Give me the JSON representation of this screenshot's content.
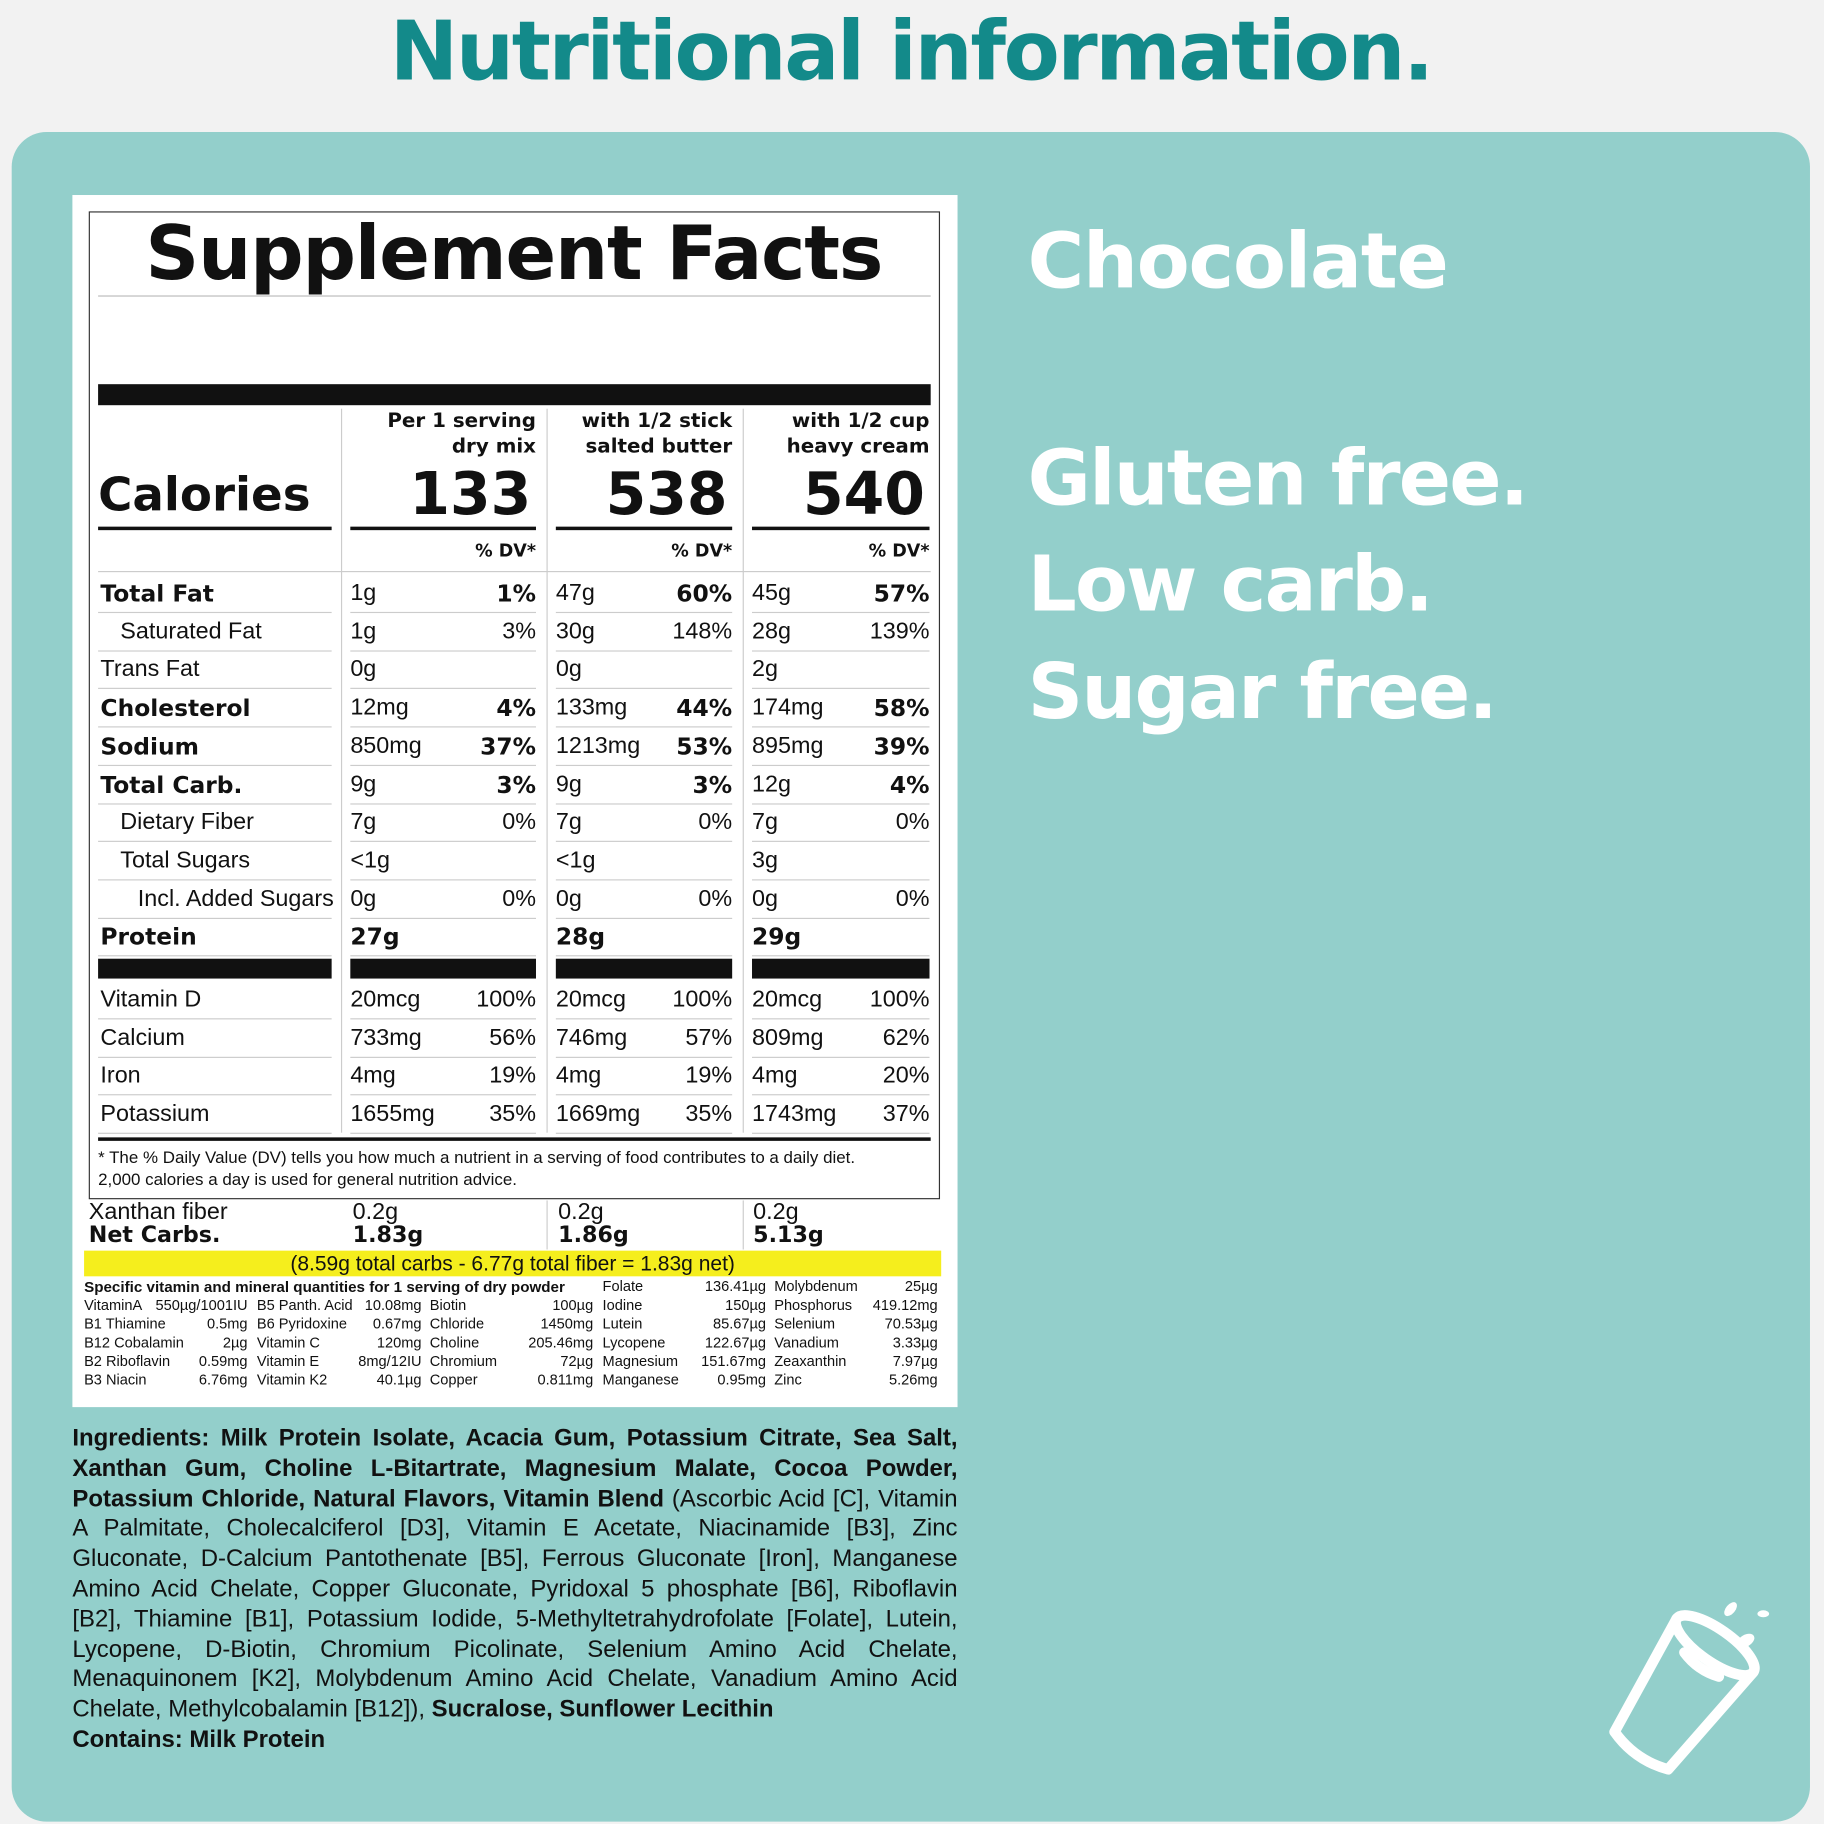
{
  "header": {
    "title": "Nutritional information."
  },
  "side": {
    "flavor": "Chocolate",
    "claims": [
      "Gluten free.",
      "Low carb.",
      "Sugar free."
    ]
  },
  "label": {
    "title": "Supplement Facts",
    "calories_label": "Calories",
    "columns": [
      {
        "header": [
          "Per 1 serving",
          "dry mix"
        ],
        "calories": 133,
        "dv_header": "% DV*"
      },
      {
        "header": [
          "with 1/2 stick",
          "salted butter"
        ],
        "calories": 538,
        "dv_header": "% DV*"
      },
      {
        "header": [
          "with 1/2 cup",
          "heavy cream"
        ],
        "calories": 540,
        "dv_header": "% DV*"
      }
    ],
    "rows": [
      {
        "name": "Total Fat",
        "bold": true,
        "indent": 0,
        "cells": [
          [
            "1g",
            "1%"
          ],
          [
            "47g",
            "60%"
          ],
          [
            "45g",
            "57%"
          ]
        ]
      },
      {
        "name": "Saturated Fat",
        "bold": false,
        "indent": 1,
        "cells": [
          [
            "1g",
            "3%"
          ],
          [
            "30g",
            "148%"
          ],
          [
            "28g",
            "139%"
          ]
        ]
      },
      {
        "name": "Trans Fat",
        "bold": false,
        "indent": 0,
        "cells": [
          [
            "0g"
          ],
          [
            "0g"
          ],
          [
            "2g"
          ]
        ]
      },
      {
        "name": "Cholesterol",
        "bold": true,
        "indent": 0,
        "cells": [
          [
            "12mg",
            "4%"
          ],
          [
            "133mg",
            "44%"
          ],
          [
            "174mg",
            "58%"
          ]
        ]
      },
      {
        "name": "Sodium",
        "bold": true,
        "indent": 0,
        "cells": [
          [
            "850mg",
            "37%"
          ],
          [
            "1213mg",
            "53%"
          ],
          [
            "895mg",
            "39%"
          ]
        ]
      },
      {
        "name": "Total Carb.",
        "bold": true,
        "indent": 0,
        "cells": [
          [
            "9g",
            "3%"
          ],
          [
            "9g",
            "3%"
          ],
          [
            "12g",
            "4%"
          ]
        ]
      },
      {
        "name": "Dietary Fiber",
        "bold": false,
        "indent": 1,
        "cells": [
          [
            "7g",
            "0%"
          ],
          [
            "7g",
            "0%"
          ],
          [
            "7g",
            "0%"
          ]
        ]
      },
      {
        "name": "Total Sugars",
        "bold": false,
        "indent": 1,
        "cells": [
          [
            "<1g"
          ],
          [
            "<1g"
          ],
          [
            "3g"
          ]
        ]
      },
      {
        "name": "Incl. Added Sugars",
        "bold": false,
        "indent": 2,
        "cells": [
          [
            "0g",
            "0%"
          ],
          [
            "0g",
            "0%"
          ],
          [
            "0g",
            "0%"
          ]
        ]
      },
      {
        "name": "Protein",
        "bold": true,
        "indent": 0,
        "cells": [
          [
            "27g"
          ],
          [
            "28g"
          ],
          [
            "29g"
          ]
        ]
      }
    ],
    "vitamins": [
      {
        "name": "Vitamin D",
        "cells": [
          [
            "20mcg",
            "100%"
          ],
          [
            "20mcg",
            "100%"
          ],
          [
            "20mcg",
            "100%"
          ]
        ]
      },
      {
        "name": "Calcium",
        "cells": [
          [
            "733mg",
            "56%"
          ],
          [
            "746mg",
            "57%"
          ],
          [
            "809mg",
            "62%"
          ]
        ]
      },
      {
        "name": "Iron",
        "cells": [
          [
            "4mg",
            "19%"
          ],
          [
            "4mg",
            "19%"
          ],
          [
            "4mg",
            "20%"
          ]
        ]
      },
      {
        "name": "Potassium",
        "cells": [
          [
            "1655mg",
            "35%"
          ],
          [
            "1669mg",
            "35%"
          ],
          [
            "1743mg",
            "37%"
          ]
        ]
      }
    ],
    "footnote": [
      "* The % Daily Value (DV) tells you how much a nutrient in a serving of food contributes to a daily diet.",
      "2,000 calories a day is used for general nutrition advice."
    ],
    "extra_rows": [
      {
        "name": "Xanthan fiber",
        "bold": false,
        "values": [
          "0.2g",
          "0.2g",
          "0.2g"
        ]
      },
      {
        "name": "Net Carbs.",
        "bold": true,
        "values": [
          "1.83g",
          "1.86g",
          "5.13g"
        ]
      }
    ],
    "net_note": "(8.59g total carbs - 6.77g total fiber = 1.83g net)",
    "micronutrients": {
      "title": "Specific vitamin and mineral quantities for 1 serving of dry powder",
      "columns": [
        [
          [
            "VitaminA",
            "550µg/1001IU"
          ],
          [
            "B1 Thiamine",
            "0.5mg"
          ],
          [
            "B12 Cobalamin",
            "2µg"
          ],
          [
            "B2 Riboflavin",
            "0.59mg"
          ],
          [
            "B3 Niacin",
            "6.76mg"
          ]
        ],
        [
          [
            "B5 Panth. Acid",
            "10.08mg"
          ],
          [
            "B6 Pyridoxine",
            "0.67mg"
          ],
          [
            "Vitamin C",
            "120mg"
          ],
          [
            "Vitamin E",
            "8mg/12IU"
          ],
          [
            "Vitamin K2",
            "40.1µg"
          ]
        ],
        [
          [
            "Biotin",
            "100µg"
          ],
          [
            "Chloride",
            "1450mg"
          ],
          [
            "Choline",
            "205.46mg"
          ],
          [
            "Chromium",
            "72µg"
          ],
          [
            "Copper",
            "0.811mg"
          ]
        ],
        [
          [
            "Folate",
            "136.41µg"
          ],
          [
            "Iodine",
            "150µg"
          ],
          [
            "Lutein",
            "85.67µg"
          ],
          [
            "Lycopene",
            "122.67µg"
          ],
          [
            "Magnesium",
            "151.67mg"
          ],
          [
            "Manganese",
            "0.95mg"
          ]
        ],
        [
          [
            "Molybdenum",
            "25µg"
          ],
          [
            "Phosphorus",
            "419.12mg"
          ],
          [
            "Selenium",
            "70.53µg"
          ],
          [
            "Vanadium",
            "3.33µg"
          ],
          [
            "Zeaxanthin",
            "7.97µg"
          ],
          [
            "Zinc",
            "5.26mg"
          ]
        ]
      ]
    }
  },
  "ingredients": {
    "segments": [
      {
        "text": "Ingredients: Milk Protein Isolate, Acacia Gum, Potassium Citrate, Sea Salt, Xanthan Gum, Choline L-Bitartrate, Magnesium Malate, Cocoa Powder, Potassium Chloride, Natural Flavors, Vitamin Blend",
        "bold": true
      },
      {
        "text": " (Ascorbic Acid [C], Vitamin A Palmitate, Cholecalciferol [D3], Vitamin E Acetate, Niacinamide [B3], Zinc Gluconate, D-Calcium Pantothenate [B5], Ferrous Gluconate [Iron], Manganese Amino Acid Chelate, Copper Gluconate, Pyridoxal 5 phosphate [B6], Riboflavin [B2], Thiamine [B1], Potassium Iodide, 5-Methyltetrahydrofolate [Folate], Lutein, Lycopene, D-Biotin, Chromium Picolinate, Selenium Amino Acid Chelate, Menaquinonem [K2], Molybdenum Amino Acid Chelate, Vanadium Amino Acid Chelate, Methylcobalamin [B12]),",
        "bold": false
      },
      {
        "text": " Sucralose, Sunflower Lecithin",
        "bold": true
      }
    ],
    "contains": "Contains: Milk Protein"
  }
}
